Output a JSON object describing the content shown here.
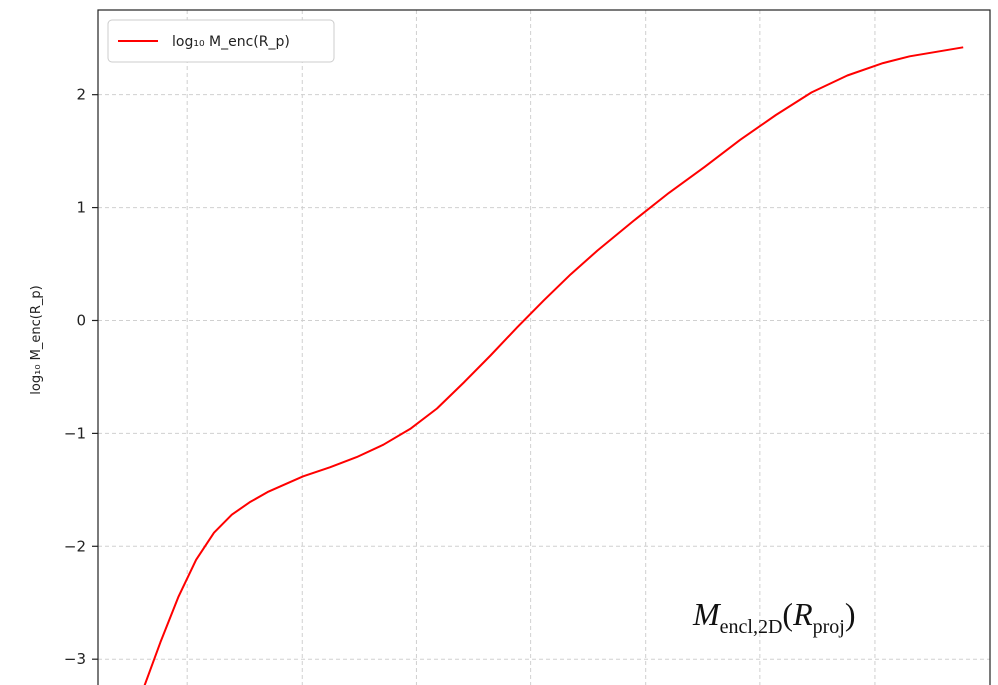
{
  "chart_data": {
    "type": "line",
    "title": "",
    "xlabel": "",
    "ylabel": "log₁₀ M_enc(R_p)",
    "ylim": [
      -3.45,
      2.75
    ],
    "xlim": [
      0.0,
      1.0
    ],
    "y_ticks": [
      2,
      1,
      0,
      -1,
      -2,
      -3
    ],
    "y_tick_labels": [
      "2",
      "1",
      "0",
      "−1",
      "−2",
      "−3"
    ],
    "x_gridlines": [
      0.1,
      0.229,
      0.357,
      0.485,
      0.614,
      0.742,
      0.871,
      1.0
    ],
    "grid": true,
    "legend_position": "top-left",
    "series": [
      {
        "name": "log₁₀ M_enc(R_p)",
        "color": "#ff0000",
        "x": [
          0.05,
          0.07,
          0.09,
          0.11,
          0.13,
          0.15,
          0.17,
          0.19,
          0.21,
          0.23,
          0.26,
          0.29,
          0.32,
          0.35,
          0.38,
          0.41,
          0.44,
          0.47,
          0.5,
          0.53,
          0.56,
          0.6,
          0.64,
          0.68,
          0.72,
          0.76,
          0.8,
          0.84,
          0.88,
          0.91,
          0.94,
          0.97
        ],
        "y": [
          -3.28,
          -2.85,
          -2.45,
          -2.12,
          -1.88,
          -1.72,
          -1.61,
          -1.52,
          -1.45,
          -1.38,
          -1.3,
          -1.21,
          -1.1,
          -0.96,
          -0.78,
          -0.55,
          -0.31,
          -0.06,
          0.18,
          0.41,
          0.62,
          0.88,
          1.13,
          1.36,
          1.6,
          1.82,
          2.02,
          2.17,
          2.28,
          2.34,
          2.38,
          2.42
        ]
      }
    ],
    "annotation": "M_encl,2D(R_proj)"
  }
}
